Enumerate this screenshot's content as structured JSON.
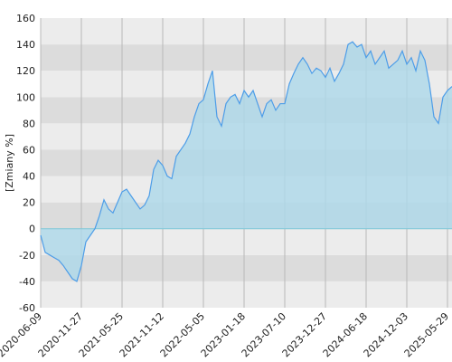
{
  "chart_data": {
    "type": "area",
    "y_label": "[Zmiany %]",
    "ylim": [
      -60,
      160
    ],
    "yticks": [
      -60,
      -40,
      -20,
      0,
      20,
      40,
      60,
      80,
      100,
      120,
      140,
      160
    ],
    "categories": [
      "2020-06-09",
      null,
      null,
      null,
      null,
      null,
      null,
      null,
      null,
      "2020-11-27",
      null,
      null,
      null,
      null,
      null,
      null,
      null,
      null,
      "2021-05-25",
      null,
      null,
      null,
      null,
      null,
      null,
      null,
      null,
      "2021-11-12",
      null,
      null,
      null,
      null,
      null,
      null,
      null,
      null,
      "2022-05-05",
      null,
      null,
      null,
      null,
      null,
      null,
      null,
      null,
      "2023-01-18",
      null,
      null,
      null,
      null,
      null,
      null,
      null,
      null,
      "2023-07-10",
      null,
      null,
      null,
      null,
      null,
      null,
      null,
      null,
      "2023-12-27",
      null,
      null,
      null,
      null,
      null,
      null,
      null,
      null,
      "2024-06-18",
      null,
      null,
      null,
      null,
      null,
      null,
      null,
      null,
      "2024-12-03",
      null,
      null,
      null,
      null,
      null,
      null,
      null,
      null,
      "2025-05-29",
      null
    ],
    "series": [
      {
        "color": "#4d9de8",
        "fill": "#add8ea",
        "values": [
          -5,
          -18,
          -20,
          -22,
          -24,
          -28,
          -33,
          -38,
          -40,
          -28,
          -10,
          -5,
          0,
          10,
          22,
          15,
          12,
          20,
          28,
          30,
          25,
          20,
          15,
          18,
          25,
          45,
          52,
          48,
          40,
          38,
          55,
          60,
          65,
          72,
          85,
          95,
          98,
          110,
          120,
          85,
          78,
          95,
          100,
          102,
          95,
          105,
          100,
          105,
          95,
          85,
          95,
          98,
          90,
          95,
          95,
          110,
          118,
          125,
          130,
          125,
          118,
          122,
          120,
          115,
          122,
          112,
          118,
          125,
          140,
          142,
          138,
          140,
          130,
          135,
          125,
          130,
          135,
          122,
          125,
          128,
          135,
          125,
          130,
          120,
          135,
          128,
          110,
          85,
          80,
          100,
          105,
          108
        ]
      }
    ]
  }
}
